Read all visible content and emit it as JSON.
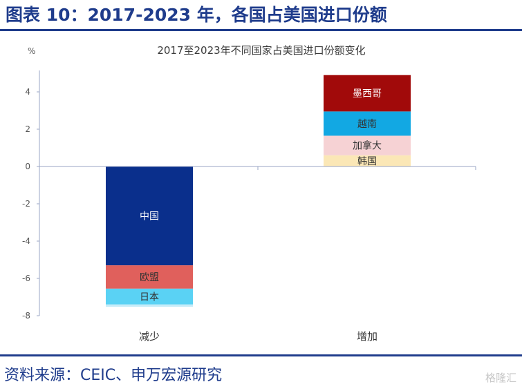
{
  "figure_title": "图表 10：2017-2023 年，各国占美国进口份额",
  "source": "资料来源：CEIC、申万宏源研究",
  "watermark": "格隆汇",
  "chart_data": {
    "type": "bar",
    "stacked": true,
    "title": "2017至2023年不同国家占美国进口份额变化",
    "unit": "%",
    "categories": [
      "减少",
      "增加"
    ],
    "ylim": [
      -8,
      5
    ],
    "yticks": [
      4,
      2,
      0,
      -2,
      -4,
      -6,
      -8
    ],
    "grid": false,
    "legend": "none",
    "series": [
      {
        "name": "中国",
        "category": "减少",
        "value": -5.3,
        "color": "#0a2f8c",
        "text_color": "#ffffff"
      },
      {
        "name": "欧盟",
        "category": "减少",
        "value": -1.25,
        "color": "#e0605c",
        "text_color": "#333333"
      },
      {
        "name": "日本",
        "category": "减少",
        "value": -0.85,
        "color": "#5ad2f4",
        "text_color": "#333333"
      },
      {
        "name": "",
        "category": "减少",
        "value": -0.12,
        "color": "#c6ecf8",
        "text_color": "#333333"
      },
      {
        "name": "韩国",
        "category": "增加",
        "value": 0.6,
        "color": "#fbe7b6",
        "text_color": "#333333"
      },
      {
        "name": "加拿大",
        "category": "增加",
        "value": 1.05,
        "color": "#f6d2d4",
        "text_color": "#333333"
      },
      {
        "name": "越南",
        "category": "增加",
        "value": 1.3,
        "color": "#12a8e3",
        "text_color": "#333333"
      },
      {
        "name": "墨西哥",
        "category": "增加",
        "value": 1.95,
        "color": "#a10a0a",
        "text_color": "#ffffff"
      }
    ]
  }
}
